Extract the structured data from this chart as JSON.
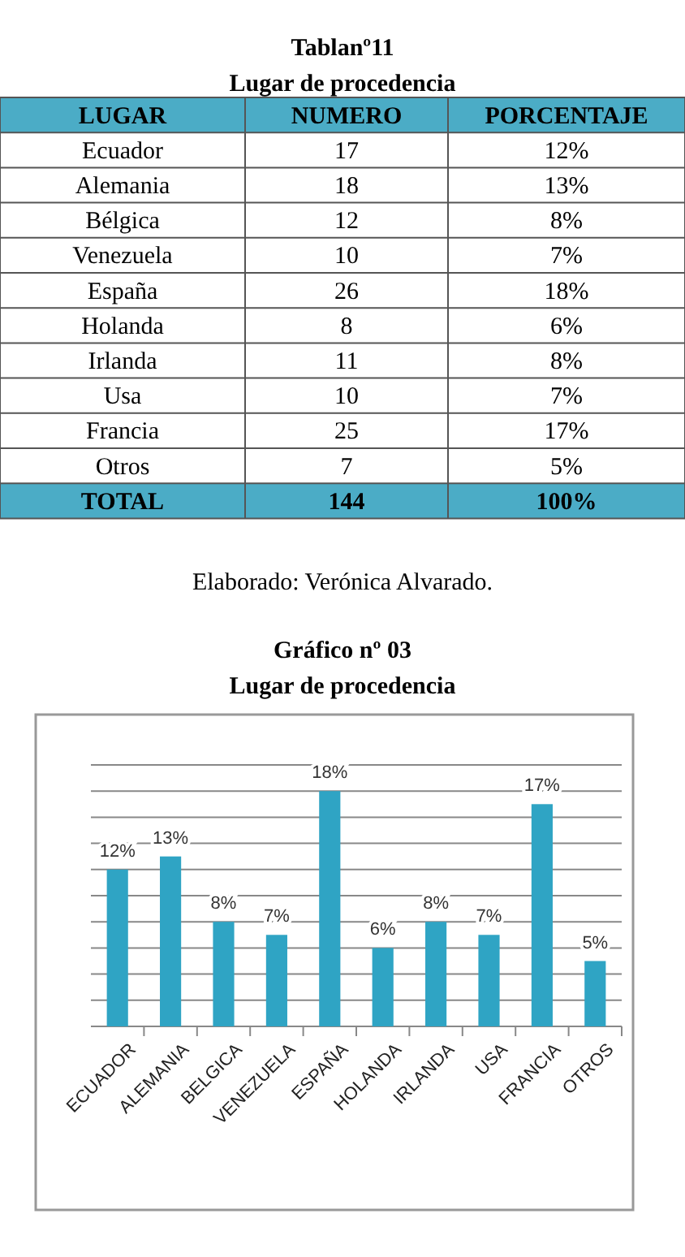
{
  "chart_data": [
    {
      "type": "other",
      "title": "Tablanº11",
      "subtitle": "Lugar de procedencia",
      "annotations": [
        "LUGAR",
        "NUMERO",
        "PORCENTAJE",
        "Ecuador",
        "17",
        "12%",
        "Alemania",
        "18",
        "13%",
        "Bélgica",
        "12",
        "8%",
        "Venezuela",
        "10",
        "7%",
        "España",
        "26",
        "18%",
        "Holanda",
        "8",
        "6%",
        "Irlanda",
        "11",
        "8%",
        "Usa",
        "10",
        "7%",
        "Francia",
        "25",
        "17%",
        "Otros",
        "7",
        "5%",
        "TOTAL",
        "144",
        "100%",
        "Elaborado: Verónica Alvarado."
      ]
    },
    {
      "type": "bar",
      "title": "Gráfico nº 03",
      "subtitle": "Lugar de procedencia",
      "categories": [
        "ECUADOR",
        "ALEMANIA",
        "BELGICA",
        "VENEZUELA",
        "ESPAÑA",
        "HOLANDA",
        "IRLANDA",
        "USA",
        "FRANCIA",
        "OTROS"
      ],
      "values": [
        12,
        13,
        8,
        7,
        18,
        6,
        8,
        7,
        17,
        5
      ],
      "value_labels": [
        "12%",
        "13%",
        "8%",
        "7%",
        "18%",
        "6%",
        "8%",
        "7%",
        "17%",
        "5%"
      ],
      "color": "#2fa4c4",
      "ylim": [
        0,
        20
      ],
      "yticks": [
        {
          "value": 0,
          "label": null
        },
        {
          "value": 2,
          "label": null
        },
        {
          "value": 4,
          "label": null
        },
        {
          "value": 6,
          "label": null
        },
        {
          "value": 8,
          "label": null
        },
        {
          "value": 10,
          "label": null
        },
        {
          "value": 12,
          "label": null
        },
        {
          "value": 14,
          "label": null
        },
        {
          "value": 16,
          "label": null
        },
        {
          "value": 18,
          "label": null
        },
        {
          "value": 20,
          "label": null
        }
      ],
      "grid": "y",
      "tick_labels": "x"
    }
  ]
}
